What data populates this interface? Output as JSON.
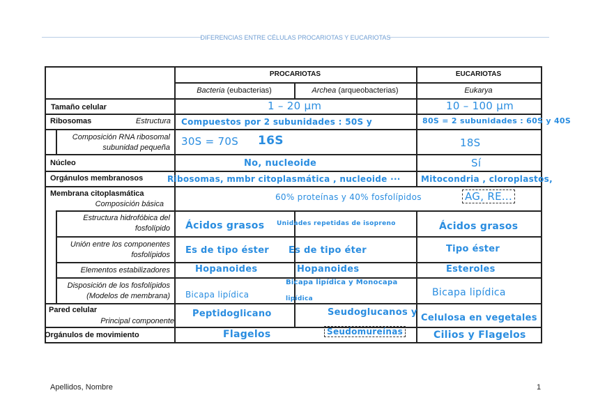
{
  "document": {
    "title": "DIFERENCIAS ENTRE CÉLULAS PROCARIOTAS Y EUCARIOTAS",
    "footer_left": "Apellidos, Nombre",
    "page_number": "1",
    "handwriting_color": "#2a8de0"
  },
  "table": {
    "headers": {
      "procariotas": "PROCARIOTAS",
      "eucariotas": "EUCARIOTAS",
      "bacteria": "Bacteria",
      "bacteria_note": " (eubacterias)",
      "archea": "Archea",
      "archea_note": " (arqueobacterias)",
      "eukarya": "Eukarya"
    },
    "rows": {
      "tamano": {
        "label": "Tamaño celular",
        "prok": "1 – 20 µm",
        "euk": "10 – 100 µm"
      },
      "ribosomas": {
        "label": "Ribosomas",
        "sublabel": "Estructura",
        "prok": "Compuestos por 2 subunidades : 50S y",
        "euk": "80S = 2 subunidades : 60S y 40S"
      },
      "rna": {
        "label_1": "Composición RNA ribosomal",
        "label_2": "subunidad pequeña",
        "prok_a": "30S = 70S",
        "prok_b": "16S",
        "euk": "18S"
      },
      "nucleo": {
        "label": "Núcleo",
        "prok": "No, nucleoide",
        "euk": "Sí"
      },
      "organulos": {
        "label": "Orgánulos membranosos",
        "prok": "Ribosomas, mmbr citoplasmática , nucleoide ···",
        "euk": "Mitocondria , cloroplastos,"
      },
      "membrana": {
        "label": "Membrana citoplasmática",
        "sublabel": "Composición básica",
        "prok": "60% proteínas y 40% fosfolípidos",
        "euk_box": "AG, RE..."
      },
      "estructura": {
        "label_1": "Estructura hidrofóbica del",
        "label_2": "fosfolípido",
        "bacteria": "Ácidos grasos",
        "archea": "Unidades repetidas de isopreno",
        "euk": "Ácidos grasos"
      },
      "union": {
        "label_1": "Unión entre los componentes",
        "label_2": "fosfolípidos",
        "bacteria": "Es de tipo éster",
        "archea": "Es de tipo éter",
        "euk": "Tipo éster"
      },
      "elementos": {
        "label": "Elementos estabilizadores",
        "bacteria": "Hopanoides",
        "archea": "Hopanoides",
        "euk": "Esteroles"
      },
      "disposicion": {
        "label_1": "Disposición de los fosfolípidos",
        "label_2": "(Modelos de membrana)",
        "bacteria": "Bicapa lipídica",
        "archea_1": "Bicapa lipídica y Monocapa",
        "archea_2": "lipídica",
        "euk": "Bicapa lipídica"
      },
      "pared": {
        "label": "Pared celular",
        "sublabel": "Principal componente",
        "bacteria": "Peptidoglicano",
        "archea": "Seudoglucanos y",
        "euk": "Celulosa en vegetales"
      },
      "movimiento": {
        "label": "Orgánulos de movimiento",
        "bacteria": "Flagelos",
        "archea_box": "Seudomureínas",
        "euk": "Cilios y Flagelos"
      }
    }
  }
}
